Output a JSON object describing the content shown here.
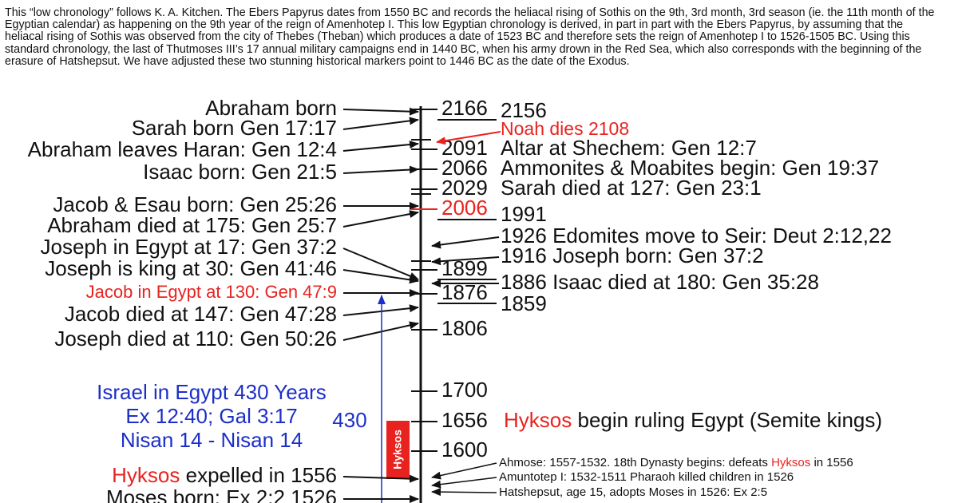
{
  "intro": "This “low chronology” follows K. A. Kitchen. The Ebers Papyrus dates from 1550 BC and records the heliacal rising of Sothis on the 9th, 3rd month, 3rd season (ie. the 11th month of the Egyptian calendar) as happening on the 9th year of the reign of Amenhotep I. This low Egyptian chronology is derived, in part in part with the Ebers Papyrus, by assuming that the heliacal rising of Sothis was observed from the city of Thebes (Theban) which produces a date of 1523 BC and therefore sets the reign of Amenhotep I to 1526-1505 BC. Using this standard chronology, the last of Thutmoses III’s 17 annual military campaigns end in 1440 BC, when his army drown in the Red Sea, which also corresponds with the beginning of the erasure of Hatshepsut. We have adjusted these two stunning historical markers point to 1446 BC as the date of the Exodus.",
  "colors": {
    "highlight": "#e8231f",
    "span": "#1d2fc8",
    "text": "#111111"
  },
  "left_events": [
    {
      "text": "Abraham born"
    },
    {
      "text": "Sarah born Gen 17:17"
    },
    {
      "text": "Abraham leaves Haran: Gen 12:4"
    },
    {
      "text": "Isaac born: Gen 21:5"
    },
    {
      "text": "Jacob & Esau born: Gen 25:26"
    },
    {
      "text": "Abraham died at 175: Gen 25:7"
    },
    {
      "text": "Joseph in Egypt at 17: Gen 37:2"
    },
    {
      "text": "Joseph is king at 30: Gen 41:46"
    },
    {
      "text": "Jacob in Egypt at 130: Gen 47:9",
      "highlighted": true
    },
    {
      "text": "Jacob died at 147: Gen 47:28"
    },
    {
      "text": "Joseph died at 110: Gen 50:26"
    }
  ],
  "timeline_years": [
    {
      "text": "2166"
    },
    {
      "text": "2091"
    },
    {
      "text": "2066"
    },
    {
      "text": "2029"
    },
    {
      "text": "2006",
      "highlighted": true
    },
    {
      "text": "1899"
    },
    {
      "text": "1876"
    },
    {
      "text": "1806"
    },
    {
      "text": "1700"
    },
    {
      "text": "1656"
    },
    {
      "text": "1600"
    }
  ],
  "right_events": [
    {
      "text": "2156"
    },
    {
      "text": "Noah dies 2108",
      "highlighted": true
    },
    {
      "text": "Altar at Shechem: Gen 12:7"
    },
    {
      "text": "Ammonites & Moabites begin: Gen 19:37"
    },
    {
      "text": "Sarah died at 127: Gen 23:1"
    },
    {
      "text": "1991"
    },
    {
      "text": "1926 Edomites move to Seir: Deut 2:12,22"
    },
    {
      "text": "1916 Joseph born: Gen 37:2"
    },
    {
      "text": "1886 Isaac died at 180: Gen 35:28"
    },
    {
      "text": "1859"
    }
  ],
  "hyksos_rule": {
    "highlight": "Hyksos",
    "rest": "begin ruling Egypt (Semite kings)"
  },
  "hyksos_box": "Hyksos",
  "egypt_span": {
    "lines": [
      "Israel in Egypt 430 Years",
      "Ex 12:40; Gal 3:17",
      "Nisan 14 - Nisan 14"
    ],
    "years": "430"
  },
  "bottom_left": [
    {
      "highlight": "Hyksos",
      "rest": "expelled in 1556"
    },
    {
      "text": "Moses born: Ex 2:2 1526"
    }
  ],
  "notes": [
    {
      "before": "Ahmose: 1557-1532. 18th Dynasty begins: defeats",
      "highlight": "Hyksos",
      "rest": "in 1556"
    },
    {
      "text": "Amuntotep I: 1532-1511 Pharaoh killed children in 1526"
    },
    {
      "text": "Hatshepsut, age 15, adopts Moses in 1526: Ex 2:5"
    }
  ]
}
